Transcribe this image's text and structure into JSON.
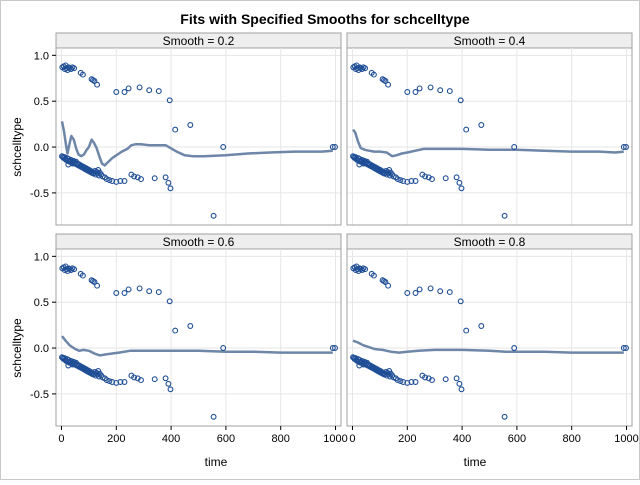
{
  "figure": {
    "title": "Fits with Specified Smooths for schcelltype",
    "xlabel": "time",
    "ylabel": "schcelltype",
    "frame_color": "#a0a0a0",
    "header_bg": "#eeeeee",
    "grid_color": "#e6e6e6"
  },
  "colors": {
    "marker": "#1f4e96",
    "curve": "#6e86a8"
  },
  "chart_data": [
    {
      "type": "scatter",
      "panel_title": "Smooth = 0.2",
      "xlim": [
        -20,
        1020
      ],
      "ylim": [
        -0.85,
        1.08
      ],
      "xticks": [
        0,
        200,
        400,
        600,
        800,
        1000
      ],
      "yticks": [
        1.0,
        0.5,
        0.0,
        -0.5
      ],
      "ytick_labels": [
        "1.0",
        "0.5",
        "0.0",
        "-0.5"
      ],
      "grid": true,
      "smooth_curve": [
        [
          2,
          0.28
        ],
        [
          10,
          0.16
        ],
        [
          16,
          0.03
        ],
        [
          22,
          -0.07
        ],
        [
          28,
          0.02
        ],
        [
          36,
          0.12
        ],
        [
          45,
          0.08
        ],
        [
          54,
          -0.02
        ],
        [
          62,
          -0.08
        ],
        [
          72,
          -0.1
        ],
        [
          82,
          -0.08
        ],
        [
          92,
          -0.03
        ],
        [
          100,
          0.0
        ],
        [
          110,
          0.08
        ],
        [
          118,
          0.05
        ],
        [
          128,
          -0.01
        ],
        [
          138,
          -0.1
        ],
        [
          148,
          -0.18
        ],
        [
          158,
          -0.2
        ],
        [
          168,
          -0.17
        ],
        [
          185,
          -0.12
        ],
        [
          200,
          -0.09
        ],
        [
          220,
          -0.05
        ],
        [
          240,
          -0.02
        ],
        [
          255,
          0.02
        ],
        [
          270,
          0.03
        ],
        [
          290,
          0.03
        ],
        [
          320,
          0.02
        ],
        [
          350,
          0.02
        ],
        [
          380,
          0.02
        ],
        [
          420,
          -0.05
        ],
        [
          450,
          -0.09
        ],
        [
          480,
          -0.1
        ],
        [
          520,
          -0.1
        ],
        [
          600,
          -0.09
        ],
        [
          680,
          -0.07
        ],
        [
          760,
          -0.06
        ],
        [
          850,
          -0.05
        ],
        [
          950,
          -0.05
        ],
        [
          990,
          -0.04
        ]
      ]
    },
    {
      "type": "scatter",
      "panel_title": "Smooth = 0.4",
      "xlim": [
        -20,
        1020
      ],
      "ylim": [
        -0.85,
        1.08
      ],
      "xticks": [
        0,
        200,
        400,
        600,
        800,
        1000
      ],
      "yticks": [
        1.0,
        0.5,
        0.0,
        -0.5
      ],
      "ytick_labels": [
        "1.0",
        "0.5",
        "0.0",
        "-0.5"
      ],
      "grid": true,
      "smooth_curve": [
        [
          2,
          0.19
        ],
        [
          10,
          0.16
        ],
        [
          20,
          0.06
        ],
        [
          30,
          -0.01
        ],
        [
          45,
          -0.03
        ],
        [
          60,
          -0.04
        ],
        [
          80,
          -0.05
        ],
        [
          100,
          -0.05
        ],
        [
          125,
          -0.06
        ],
        [
          145,
          -0.1
        ],
        [
          160,
          -0.09
        ],
        [
          180,
          -0.07
        ],
        [
          200,
          -0.06
        ],
        [
          230,
          -0.04
        ],
        [
          260,
          -0.02
        ],
        [
          300,
          -0.02
        ],
        [
          400,
          -0.02
        ],
        [
          500,
          -0.03
        ],
        [
          600,
          -0.03
        ],
        [
          700,
          -0.04
        ],
        [
          800,
          -0.05
        ],
        [
          900,
          -0.05
        ],
        [
          960,
          -0.06
        ],
        [
          990,
          -0.05
        ]
      ]
    },
    {
      "type": "scatter",
      "panel_title": "Smooth = 0.6",
      "xlim": [
        -20,
        1020
      ],
      "ylim": [
        -0.85,
        1.08
      ],
      "xticks": [
        0,
        200,
        400,
        600,
        800,
        1000
      ],
      "yticks": [
        1.0,
        0.5,
        0.0,
        -0.5
      ],
      "ytick_labels": [
        "1.0",
        "0.5",
        "0.0",
        "-0.5"
      ],
      "grid": true,
      "smooth_curve": [
        [
          2,
          0.13
        ],
        [
          15,
          0.08
        ],
        [
          30,
          0.03
        ],
        [
          50,
          -0.01
        ],
        [
          65,
          -0.03
        ],
        [
          80,
          -0.02
        ],
        [
          100,
          -0.03
        ],
        [
          120,
          -0.06
        ],
        [
          140,
          -0.08
        ],
        [
          160,
          -0.07
        ],
        [
          185,
          -0.06
        ],
        [
          210,
          -0.05
        ],
        [
          250,
          -0.03
        ],
        [
          300,
          -0.03
        ],
        [
          400,
          -0.03
        ],
        [
          500,
          -0.03
        ],
        [
          600,
          -0.04
        ],
        [
          700,
          -0.04
        ],
        [
          800,
          -0.05
        ],
        [
          900,
          -0.05
        ],
        [
          990,
          -0.05
        ]
      ]
    },
    {
      "type": "scatter",
      "panel_title": "Smooth = 0.8",
      "xlim": [
        -20,
        1020
      ],
      "ylim": [
        -0.85,
        1.08
      ],
      "xticks": [
        0,
        200,
        400,
        600,
        800,
        1000
      ],
      "yticks": [
        1.0,
        0.5,
        0.0,
        -0.5
      ],
      "ytick_labels": [
        "1.0",
        "0.5",
        "0.0",
        "-0.5"
      ],
      "grid": true,
      "smooth_curve": [
        [
          2,
          0.08
        ],
        [
          20,
          0.06
        ],
        [
          40,
          0.03
        ],
        [
          60,
          0.01
        ],
        [
          80,
          -0.01
        ],
        [
          110,
          -0.02
        ],
        [
          140,
          -0.04
        ],
        [
          170,
          -0.05
        ],
        [
          200,
          -0.04
        ],
        [
          240,
          -0.03
        ],
        [
          300,
          -0.02
        ],
        [
          400,
          -0.02
        ],
        [
          500,
          -0.03
        ],
        [
          560,
          -0.04
        ],
        [
          600,
          -0.04
        ],
        [
          700,
          -0.04
        ],
        [
          800,
          -0.05
        ],
        [
          900,
          -0.05
        ],
        [
          990,
          -0.05
        ]
      ]
    }
  ],
  "scatter_points": [
    [
      3,
      0.87
    ],
    [
      8,
      0.88
    ],
    [
      12,
      0.85
    ],
    [
      15,
      0.89
    ],
    [
      18,
      0.86
    ],
    [
      22,
      0.84
    ],
    [
      26,
      0.87
    ],
    [
      30,
      0.86
    ],
    [
      35,
      0.85
    ],
    [
      40,
      0.87
    ],
    [
      46,
      0.86
    ],
    [
      70,
      0.81
    ],
    [
      78,
      0.79
    ],
    [
      110,
      0.74
    ],
    [
      115,
      0.73
    ],
    [
      120,
      0.72
    ],
    [
      130,
      0.68
    ],
    [
      200,
      0.6
    ],
    [
      230,
      0.6
    ],
    [
      245,
      0.64
    ],
    [
      285,
      0.65
    ],
    [
      320,
      0.62
    ],
    [
      355,
      0.61
    ],
    [
      395,
      0.51
    ],
    [
      415,
      0.19
    ],
    [
      470,
      0.24
    ],
    [
      590,
      0.0
    ],
    [
      990,
      0.0
    ],
    [
      998,
      0.0
    ],
    [
      555,
      -0.75
    ],
    [
      2,
      -0.1
    ],
    [
      5,
      -0.11
    ],
    [
      8,
      -0.12
    ],
    [
      11,
      -0.11
    ],
    [
      14,
      -0.13
    ],
    [
      17,
      -0.14
    ],
    [
      20,
      -0.12
    ],
    [
      23,
      -0.15
    ],
    [
      26,
      -0.13
    ],
    [
      29,
      -0.16
    ],
    [
      32,
      -0.15
    ],
    [
      35,
      -0.14
    ],
    [
      38,
      -0.17
    ],
    [
      41,
      -0.16
    ],
    [
      44,
      -0.15
    ],
    [
      47,
      -0.18
    ],
    [
      50,
      -0.17
    ],
    [
      53,
      -0.16
    ],
    [
      56,
      -0.19
    ],
    [
      59,
      -0.18
    ],
    [
      62,
      -0.2
    ],
    [
      65,
      -0.19
    ],
    [
      68,
      -0.21
    ],
    [
      71,
      -0.2
    ],
    [
      74,
      -0.22
    ],
    [
      77,
      -0.21
    ],
    [
      80,
      -0.23
    ],
    [
      83,
      -0.22
    ],
    [
      86,
      -0.24
    ],
    [
      89,
      -0.23
    ],
    [
      92,
      -0.25
    ],
    [
      95,
      -0.24
    ],
    [
      98,
      -0.26
    ],
    [
      101,
      -0.25
    ],
    [
      104,
      -0.27
    ],
    [
      107,
      -0.26
    ],
    [
      110,
      -0.28
    ],
    [
      113,
      -0.27
    ],
    [
      116,
      -0.29
    ],
    [
      119,
      -0.28
    ],
    [
      122,
      -0.26
    ],
    [
      125,
      -0.3
    ],
    [
      128,
      -0.27
    ],
    [
      131,
      -0.29
    ],
    [
      134,
      -0.25
    ],
    [
      137,
      -0.31
    ],
    [
      140,
      -0.28
    ],
    [
      145,
      -0.3
    ],
    [
      150,
      -0.32
    ],
    [
      158,
      -0.33
    ],
    [
      165,
      -0.35
    ],
    [
      175,
      -0.36
    ],
    [
      185,
      -0.37
    ],
    [
      200,
      -0.38
    ],
    [
      215,
      -0.37
    ],
    [
      230,
      -0.37
    ],
    [
      255,
      -0.3
    ],
    [
      265,
      -0.32
    ],
    [
      278,
      -0.33
    ],
    [
      290,
      -0.35
    ],
    [
      340,
      -0.34
    ],
    [
      380,
      -0.33
    ],
    [
      390,
      -0.39
    ],
    [
      398,
      -0.45
    ],
    [
      25,
      -0.19
    ],
    [
      40,
      -0.18
    ]
  ]
}
